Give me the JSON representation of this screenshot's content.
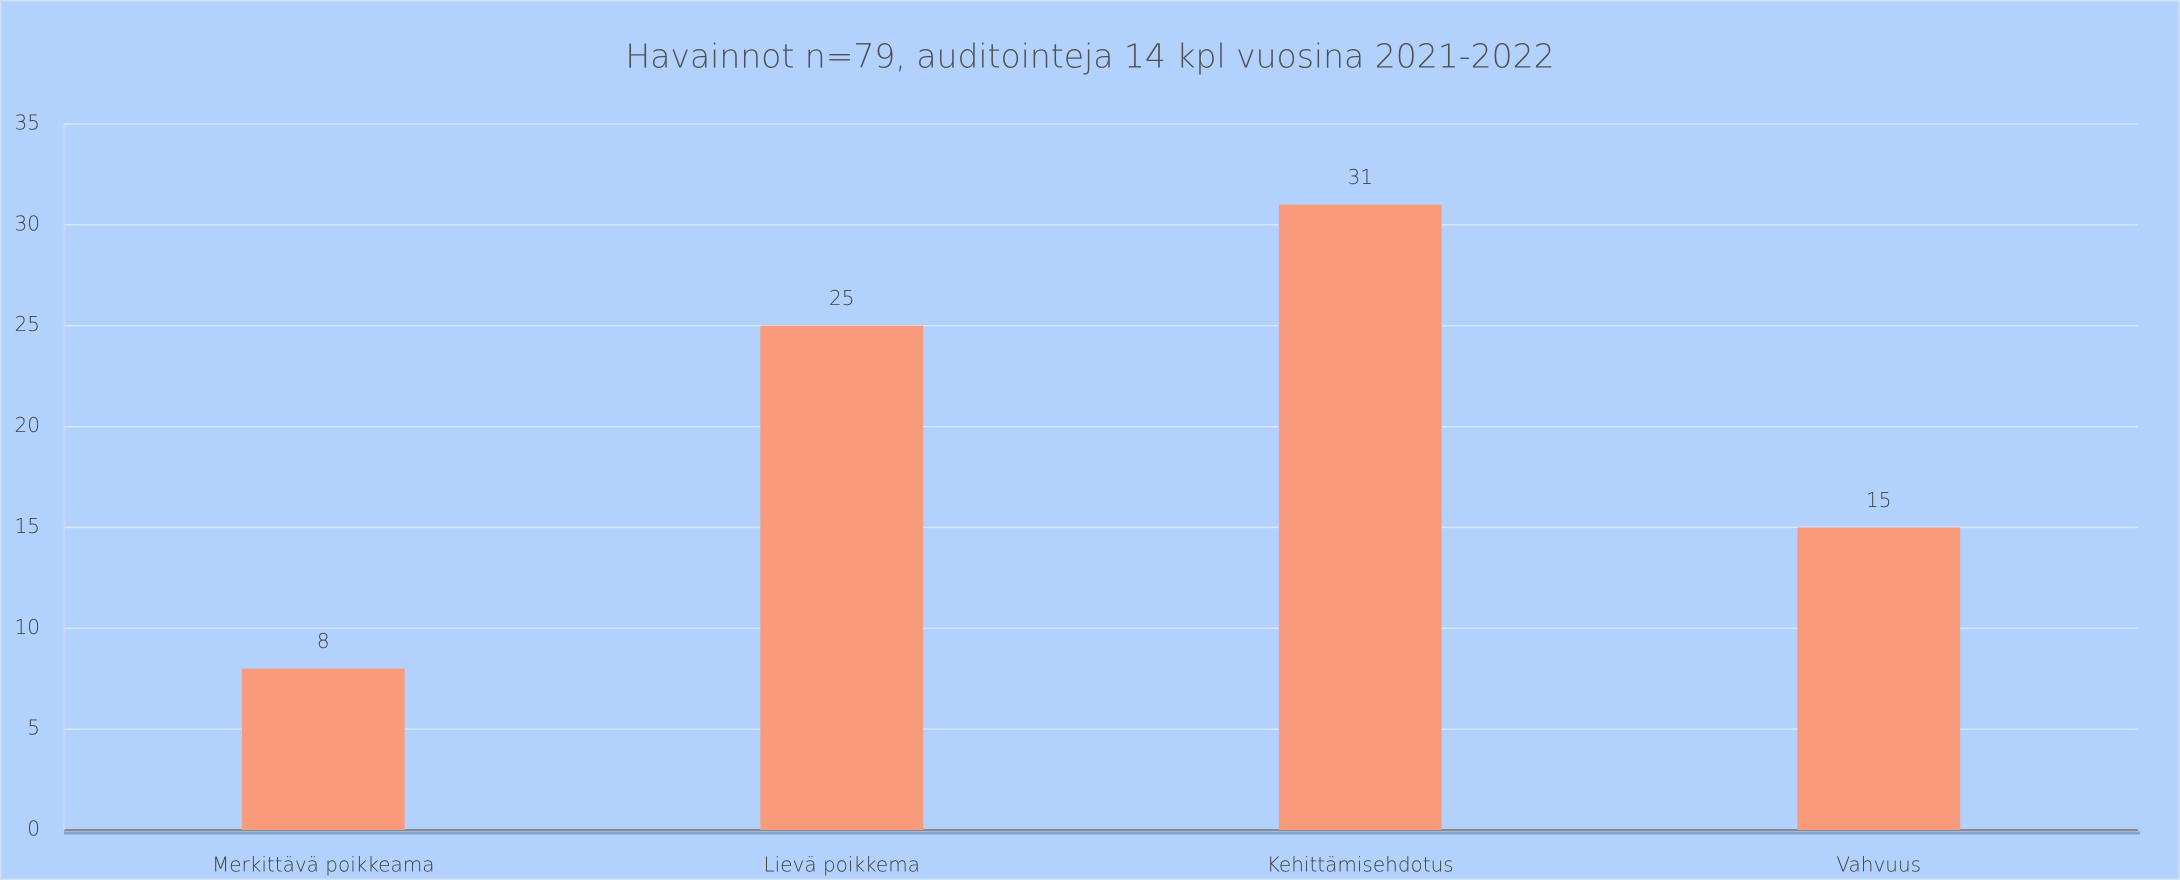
{
  "chart_data": {
    "type": "bar",
    "title": "Havainnot n=79, auditointeja 14 kpl vuosina 2021-2022",
    "categories": [
      "Merkittävä poikkeama",
      "Lievä poikkema",
      "Kehittämisehdotus",
      "Vahvuus"
    ],
    "values": [
      8,
      25,
      31,
      15
    ],
    "color": "#f79b7b",
    "ylim": [
      0,
      35
    ],
    "yticks": [
      0,
      5,
      10,
      15,
      20,
      25,
      30,
      35
    ],
    "grid": true
  }
}
